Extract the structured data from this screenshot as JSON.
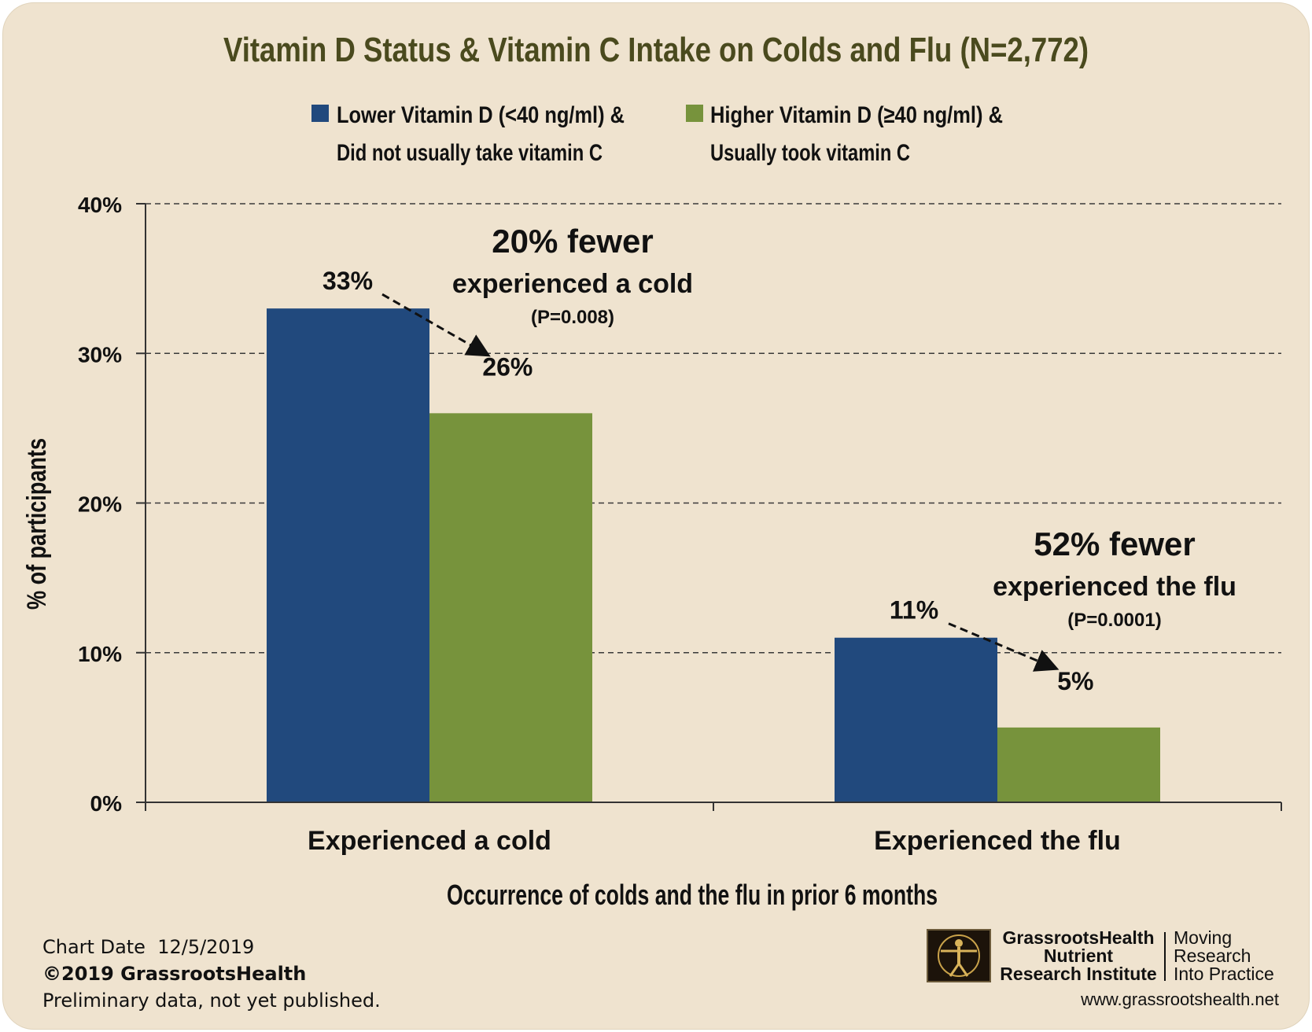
{
  "colors": {
    "background": "#efe3cf",
    "series_low": "#21497d",
    "series_high": "#77933c",
    "title": "#4a4a1e",
    "text": "#111111"
  },
  "chart_data": {
    "type": "bar",
    "title": "Vitamin D Status & Vitamin C Intake on Colds and Flu (N=2,772)",
    "xlabel": "Occurrence of colds and the flu in prior 6 months",
    "ylabel": "% of participants",
    "categories": [
      "Experienced a cold",
      "Experienced the flu"
    ],
    "ylim": [
      0,
      40
    ],
    "yticks": [
      0,
      10,
      20,
      30,
      40
    ],
    "ytick_labels": [
      "0%",
      "10%",
      "20%",
      "30%",
      "40%"
    ],
    "grid": "horizontal dashed",
    "legend_placement": "top",
    "series": [
      {
        "name": "Lower Vitamin D (<40 ng/ml) & Did not usually take vitamin C",
        "legend_lines": [
          "Lower Vitamin D (<40 ng/ml) &",
          "Did not usually take vitamin C"
        ],
        "values": [
          33,
          11
        ],
        "labels": [
          "33%",
          "11%"
        ],
        "color": "#21497d"
      },
      {
        "name": "Higher Vitamin D (≥40 ng/ml) & Usually took vitamin C",
        "legend_lines": [
          "Higher Vitamin D (≥40 ng/ml) &",
          "Usually took vitamin C"
        ],
        "values": [
          26,
          5
        ],
        "labels": [
          "26%",
          "5%"
        ],
        "color": "#77933c"
      }
    ],
    "annotations": [
      {
        "headline": "20% fewer",
        "detail": "experienced a cold",
        "pvalue": "(P=0.008)"
      },
      {
        "headline": "52% fewer",
        "detail": "experienced the flu",
        "pvalue": "(P=0.0001)"
      }
    ]
  },
  "footer": {
    "chart_date": "Chart Date  12/5/2019",
    "copyright": "©2019 GrassrootsHealth",
    "note": "Preliminary data, not yet published."
  },
  "brand": {
    "name_lines": [
      "GrassrootsHealth",
      "Nutrient",
      "Research Institute"
    ],
    "tagline_lines": [
      "Moving",
      "Research",
      "Into Practice"
    ],
    "url": "www.grassrootshealth.net"
  }
}
